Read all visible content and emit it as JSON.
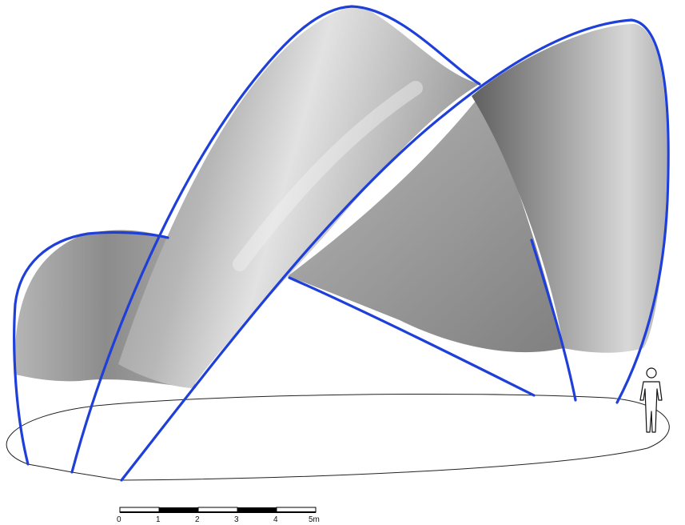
{
  "colors": {
    "arch_edge": "#1f3fd9",
    "outline": "#222222",
    "shell_light": "#e6e6e6",
    "shell_mid": "#a9a9a9",
    "shell_dark": "#6d6d6d"
  },
  "scale_bar": {
    "unit": "m",
    "ticks": [
      "0",
      "1",
      "2",
      "3",
      "4",
      "5m"
    ]
  },
  "figure": {
    "icon": "human-figure-icon"
  }
}
